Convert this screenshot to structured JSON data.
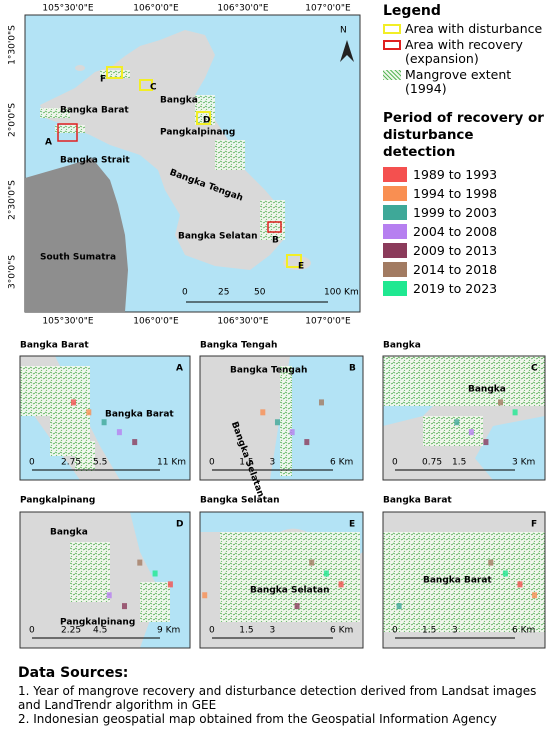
{
  "main_map": {
    "coords_top": [
      "105°30'0\"E",
      "106°0'0\"E",
      "106°30'0\"E",
      "107°0'0\"E"
    ],
    "coords_bottom": [
      "105°30'0\"E",
      "106°0'0\"E",
      "106°30'0\"E",
      "107°0'0\"E"
    ],
    "coords_left": [
      "1°30'0\"S",
      "2°0'0\"S",
      "2°30'0\"S",
      "3°0'0\"S"
    ],
    "north": "N",
    "places": [
      "F",
      "C",
      "Bangka",
      "Bangka Barat",
      "A",
      "Bangka Strait",
      "D",
      "Pangkalpinang",
      "Bangka Tengah",
      "Bangka Selatan",
      "B",
      "E",
      "South Sumatra"
    ],
    "scale": [
      "0",
      "25",
      "50",
      "100 Km"
    ]
  },
  "legend": {
    "title": "Legend",
    "items": [
      "Area with disturbance",
      "Area with recovery (expansion)",
      "Mangrove extent (1994)"
    ],
    "period_title": "Period of recovery or disturbance detection",
    "periods": [
      {
        "label": "1989 to 1993",
        "color": "#f4504f"
      },
      {
        "label": "1994 to 1998",
        "color": "#f98f52"
      },
      {
        "label": "1999 to 2003",
        "color": "#3ea898"
      },
      {
        "label": "2004 to 2008",
        "color": "#b67ff0"
      },
      {
        "label": "2009 to 2013",
        "color": "#8b3b5b"
      },
      {
        "label": "2014 to 2018",
        "color": "#a27b62"
      },
      {
        "label": "2019 to 2023",
        "color": "#1fe891"
      }
    ]
  },
  "panels": [
    {
      "title": "Bangka Barat",
      "letter": "A",
      "labels": [
        "Bangka Barat"
      ],
      "scale": [
        "0",
        "2.75",
        "5.5",
        "11 Km"
      ]
    },
    {
      "title": "Bangka Tengah",
      "letter": "B",
      "labels": [
        "Bangka Tengah",
        "Bangka Selatan"
      ],
      "scale": [
        "0",
        "1.5",
        "3",
        "6 Km"
      ]
    },
    {
      "title": "Bangka",
      "letter": "C",
      "labels": [
        "Bangka"
      ],
      "scale": [
        "0",
        "0.75",
        "1.5",
        "3 Km"
      ]
    },
    {
      "title": "Pangkalpinang",
      "letter": "D",
      "labels": [
        "Bangka",
        "Pangkalpinang"
      ],
      "scale": [
        "0",
        "2.25",
        "4.5",
        "9 Km"
      ]
    },
    {
      "title": "Bangka Selatan",
      "letter": "E",
      "labels": [
        "Bangka Selatan"
      ],
      "scale": [
        "0",
        "1.5",
        "3",
        "6 Km"
      ]
    },
    {
      "title": "Bangka Barat",
      "letter": "F",
      "labels": [
        "Bangka Barat"
      ],
      "scale": [
        "0",
        "1.5",
        "3",
        "6 Km"
      ]
    }
  ],
  "sources": {
    "title": "Data Sources:",
    "lines": [
      "1. Year of mangrove recovery and disturbance detection derived from Landsat images and LandTrendr algorithm in GEE",
      "2. Indonesian geospatial map obtained from the Geospatial Information Agency"
    ]
  }
}
